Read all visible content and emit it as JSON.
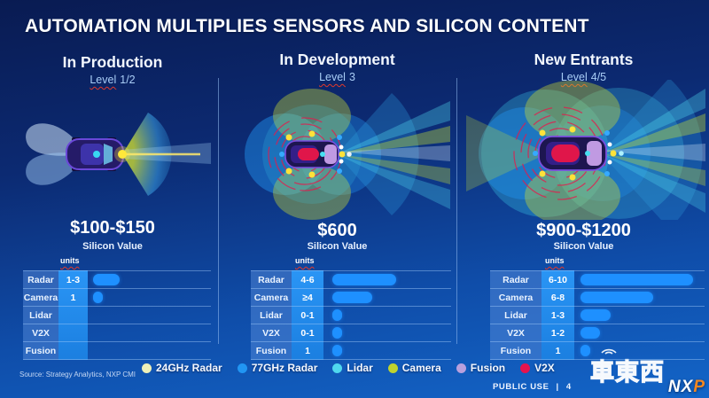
{
  "title": "AUTOMATION MULTIPLIES SENSORS AND SILICON CONTENT",
  "columns": [
    {
      "header": "In Production",
      "level_prefix": "Level",
      "level_suffix": "1/2",
      "silicon_value": "$100-$150",
      "silicon_label": "Silicon Value",
      "units_label": "units",
      "rows": [
        {
          "label": "Radar",
          "value": "1-3",
          "bar": 30
        },
        {
          "label": "Camera",
          "value": "1",
          "bar": 11
        },
        {
          "label": "Lidar",
          "value": "",
          "bar": 0
        },
        {
          "label": "V2X",
          "value": "",
          "bar": 0
        },
        {
          "label": "Fusion",
          "value": "",
          "bar": 0
        }
      ]
    },
    {
      "header": "In Development",
      "level_prefix": "Level",
      "level_suffix": "3",
      "silicon_value": "$600",
      "silicon_label": "Silicon Value",
      "units_label": "units",
      "rows": [
        {
          "label": "Radar",
          "value": "4-6",
          "bar": 72
        },
        {
          "label": "Camera",
          "value": "≥4",
          "bar": 45
        },
        {
          "label": "Lidar",
          "value": "0-1",
          "bar": 11
        },
        {
          "label": "V2X",
          "value": "0-1",
          "bar": 11
        },
        {
          "label": "Fusion",
          "value": "1",
          "bar": 11
        }
      ]
    },
    {
      "header": "New Entrants",
      "level_prefix": "Level",
      "level_suffix": "4/5",
      "silicon_value": "$900-$1200",
      "silicon_label": "Silicon Value",
      "units_label": "units",
      "rows": [
        {
          "label": "Radar",
          "value": "6-10",
          "bar": 127
        },
        {
          "label": "Camera",
          "value": "6-8",
          "bar": 82
        },
        {
          "label": "Lidar",
          "value": "1-3",
          "bar": 34
        },
        {
          "label": "V2X",
          "value": "1-2",
          "bar": 22
        },
        {
          "label": "Fusion",
          "value": "1",
          "bar": 11
        }
      ]
    }
  ],
  "legend": [
    {
      "label": "24GHz Radar",
      "color": "#eef0b8"
    },
    {
      "label": "77GHz Radar",
      "color": "#2196f3"
    },
    {
      "label": "Lidar",
      "color": "#4fd8ee"
    },
    {
      "label": "Camera",
      "color": "#bfd32e"
    },
    {
      "label": "Fusion",
      "color": "#b9a0dd"
    },
    {
      "label": "V2X",
      "color": "#e5134e"
    }
  ],
  "footer": {
    "source": "Source: Strategy Analytics, NXP CMI",
    "classification": "PUBLIC USE",
    "separator": "|",
    "page_number": "4",
    "logo_n": "N",
    "logo_x": "X",
    "logo_p": "P",
    "watermark": "車東西"
  }
}
